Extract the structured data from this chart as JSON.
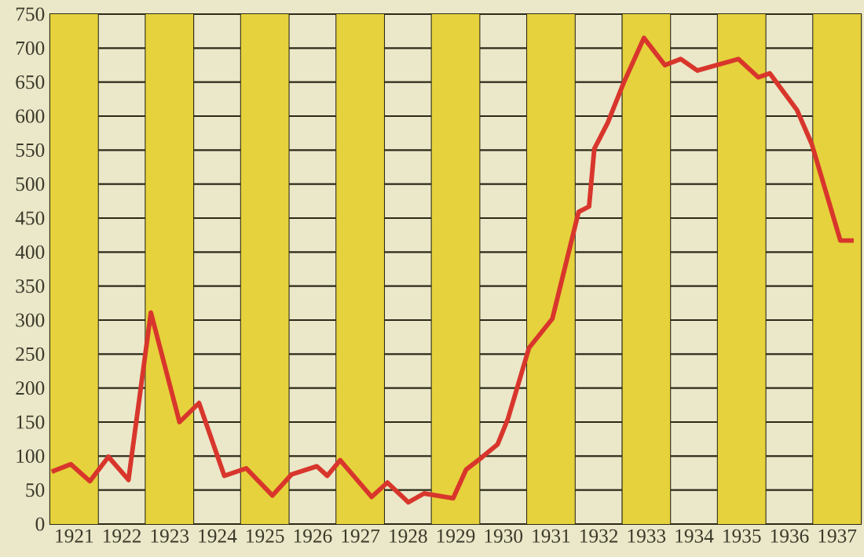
{
  "chart_data": {
    "type": "line",
    "x": [
      1921.03,
      1921.43,
      1921.83,
      1922.22,
      1922.64,
      1923.11,
      1923.71,
      1924.12,
      1924.65,
      1925.11,
      1925.66,
      1926.06,
      1926.59,
      1926.81,
      1927.08,
      1927.74,
      1928.07,
      1928.51,
      1928.84,
      1929.45,
      1929.72,
      1930.05,
      1930.38,
      1930.6,
      1931.04,
      1931.53,
      1932.08,
      1932.3,
      1932.41,
      1932.69,
      1933.02,
      1933.45,
      1933.89,
      1934.22,
      1934.57,
      1935.43,
      1935.85,
      1936.09,
      1936.66,
      1936.97,
      1937.57,
      1937.85
    ],
    "series": [
      {
        "color": "#d8362c",
        "values": [
          77,
          88,
          63,
          99,
          65,
          311,
          150,
          178,
          71,
          82,
          42,
          73,
          85,
          71,
          94,
          40,
          61,
          32,
          45,
          38,
          80,
          98,
          117,
          155,
          259,
          302,
          459,
          467,
          552,
          590,
          648,
          715,
          675,
          684,
          667,
          684,
          657,
          663,
          609,
          559,
          417,
          417
        ]
      }
    ],
    "xlim": [
      1921,
      1938
    ],
    "ylim": [
      0,
      750
    ],
    "xticks": [
      {
        "value": 1921,
        "label": null
      },
      {
        "value": 1922,
        "label": null
      },
      {
        "value": 1923,
        "label": null
      },
      {
        "value": 1924,
        "label": null
      },
      {
        "value": 1925,
        "label": null
      },
      {
        "value": 1926,
        "label": null
      },
      {
        "value": 1927,
        "label": null
      },
      {
        "value": 1928,
        "label": null
      },
      {
        "value": 1929,
        "label": null
      },
      {
        "value": 1930,
        "label": null
      },
      {
        "value": 1931,
        "label": null
      },
      {
        "value": 1932,
        "label": null
      },
      {
        "value": 1933,
        "label": null
      },
      {
        "value": 1934,
        "label": null
      },
      {
        "value": 1935,
        "label": null
      },
      {
        "value": 1936,
        "label": null
      },
      {
        "value": 1937,
        "label": null
      },
      {
        "value": 1938,
        "label": null
      },
      {
        "value": 1921.5,
        "label": "1921"
      },
      {
        "value": 1922.5,
        "label": "1922"
      },
      {
        "value": 1923.5,
        "label": "1923"
      },
      {
        "value": 1924.5,
        "label": "1924"
      },
      {
        "value": 1925.5,
        "label": "1925"
      },
      {
        "value": 1926.5,
        "label": "1926"
      },
      {
        "value": 1927.5,
        "label": "1927"
      },
      {
        "value": 1928.5,
        "label": "1928"
      },
      {
        "value": 1929.5,
        "label": "1929"
      },
      {
        "value": 1930.5,
        "label": "1930"
      },
      {
        "value": 1931.5,
        "label": "1931"
      },
      {
        "value": 1932.5,
        "label": "1932"
      },
      {
        "value": 1933.5,
        "label": "1933"
      },
      {
        "value": 1934.5,
        "label": "1934"
      },
      {
        "value": 1935.5,
        "label": "1935"
      },
      {
        "value": 1936.5,
        "label": "1936"
      },
      {
        "value": 1937.5,
        "label": "1937"
      }
    ],
    "yticks": [
      0,
      50,
      100,
      150,
      200,
      250,
      300,
      350,
      400,
      450,
      500,
      550,
      600,
      650,
      700,
      750
    ],
    "grid": true,
    "bands": [
      {
        "axis": "x",
        "from": 1921,
        "to": 1922,
        "color": "#e6d23c"
      },
      {
        "axis": "x",
        "from": 1923,
        "to": 1924,
        "color": "#e6d23c"
      },
      {
        "axis": "x",
        "from": 1925,
        "to": 1926,
        "color": "#e6d23c"
      },
      {
        "axis": "x",
        "from": 1927,
        "to": 1928,
        "color": "#e6d23c"
      },
      {
        "axis": "x",
        "from": 1929,
        "to": 1930,
        "color": "#e6d23c"
      },
      {
        "axis": "x",
        "from": 1931,
        "to": 1932,
        "color": "#e6d23c"
      },
      {
        "axis": "x",
        "from": 1933,
        "to": 1934,
        "color": "#e6d23c"
      },
      {
        "axis": "x",
        "from": 1935,
        "to": 1936,
        "color": "#e6d23c"
      },
      {
        "axis": "x",
        "from": 1937,
        "to": 1938,
        "color": "#e6d23c"
      }
    ]
  }
}
